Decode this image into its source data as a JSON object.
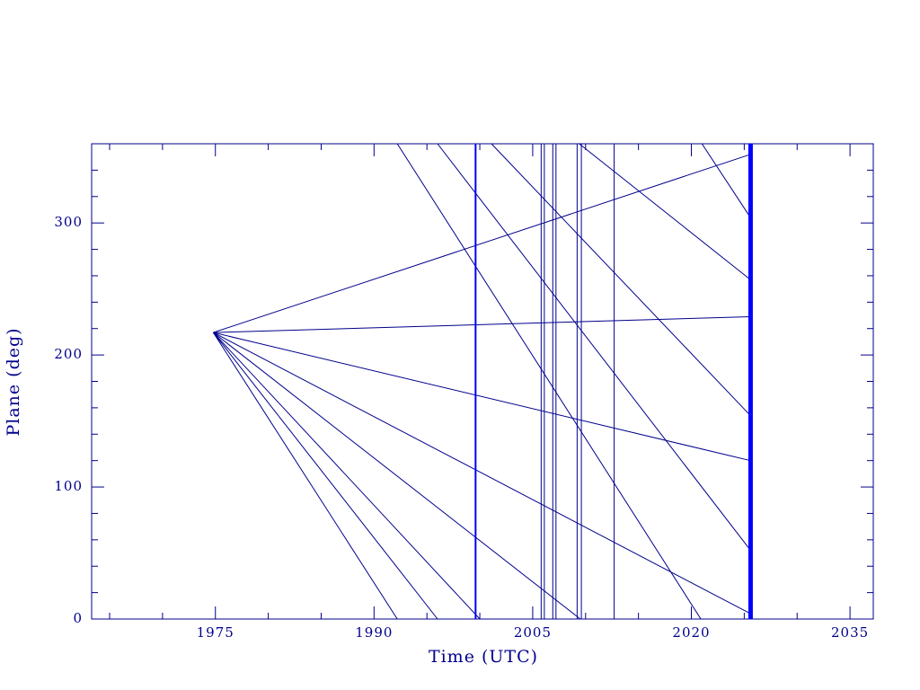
{
  "chart_data": {
    "type": "line",
    "x_label": "Time (UTC)",
    "y_label": "Plane (deg)",
    "xlim": [
      1963.3,
      2037.2
    ],
    "ylim": [
      0,
      360
    ],
    "xticks": [
      1975,
      1990,
      2005,
      2020,
      2035
    ],
    "yticks": [
      0,
      100,
      200,
      300
    ],
    "xminorticks": [
      1965,
      1970,
      1980,
      1985,
      1995,
      2000,
      2010,
      2015,
      2025,
      2030
    ],
    "yminorticks": [
      20,
      40,
      60,
      80,
      120,
      140,
      160,
      180,
      220,
      240,
      260,
      280,
      320,
      340
    ],
    "color": "#00008c",
    "vline_color": "#0000ff",
    "series": [
      {
        "x": [
          1974.8,
          2025.6
        ],
        "values": [
          217,
          352
        ]
      },
      {
        "x": [
          1974.8,
          2025.6
        ],
        "values": [
          217,
          229
        ]
      },
      {
        "x": [
          1974.8,
          2025.6
        ],
        "values": [
          217,
          120
        ]
      },
      {
        "x": [
          1974.8,
          2025.6
        ],
        "values": [
          217,
          4
        ]
      },
      {
        "x": [
          1974.8,
          2009.5
        ],
        "values": [
          217,
          0
        ]
      },
      {
        "x": [
          1974.8,
          2000.0
        ],
        "values": [
          217,
          0
        ]
      },
      {
        "x": [
          1974.8,
          1996.0
        ],
        "values": [
          217,
          0
        ]
      },
      {
        "x": [
          1974.8,
          1992.2
        ],
        "values": [
          217,
          0
        ]
      },
      {
        "x": [
          1992.2,
          2020.9
        ],
        "values": [
          360,
          0
        ]
      },
      {
        "x": [
          1996.0,
          2025.6
        ],
        "values": [
          360,
          52
        ]
      },
      {
        "x": [
          2001.1,
          2025.6
        ],
        "values": [
          360,
          154
        ]
      },
      {
        "x": [
          2009.4,
          2025.6
        ],
        "values": [
          360,
          257
        ]
      },
      {
        "x": [
          2021.0,
          2025.6
        ],
        "values": [
          360,
          304
        ]
      }
    ],
    "vlines": [
      1999.6,
      2005.8,
      2006.1,
      2006.9,
      2007.2,
      2009.2,
      2009.6,
      2012.7,
      2025.6
    ]
  }
}
